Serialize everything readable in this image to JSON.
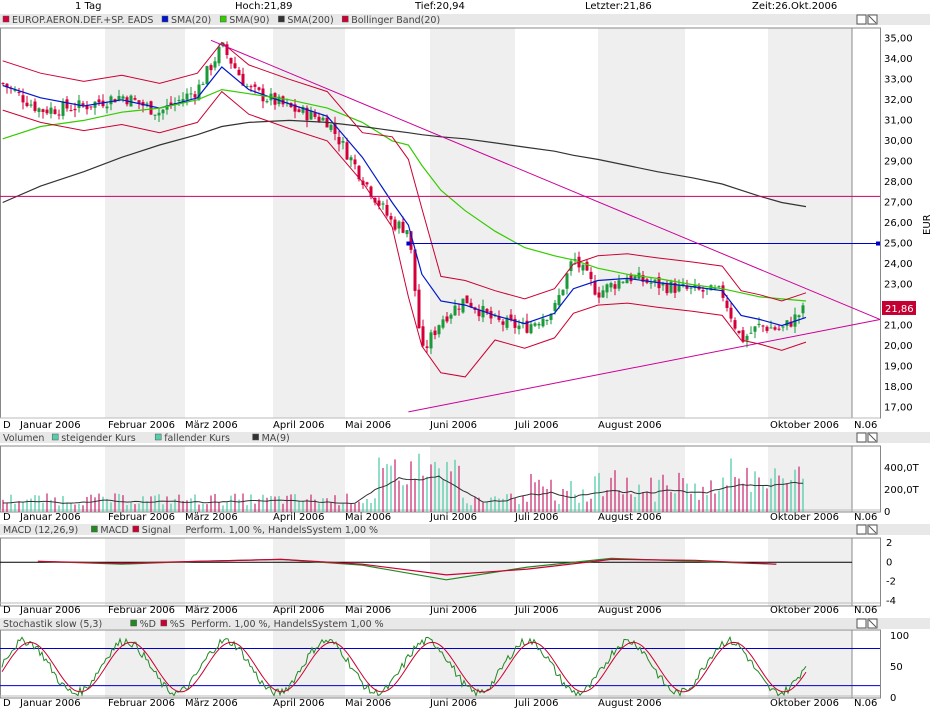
{
  "header": {
    "interval": "1 Tag",
    "high": "Hoch:21,89",
    "low": "Tief:20,94",
    "last": "Letzter:21,86",
    "time": "Zeit:26.Okt.2006"
  },
  "colors": {
    "price_up": "#1a9a3a",
    "price_down": "#d3003a",
    "sma20": "#0018cc",
    "sma90": "#33cc00",
    "sma200": "#333333",
    "bollinger": "#cc0033",
    "trendline": "#cc0099",
    "horizontal": "#cc0066",
    "blue_level": "#0000cc",
    "volume_up": "#55ccaa",
    "volume_down": "#cc3377",
    "volume_ma": "#333333",
    "macd": "#228822",
    "signal": "#cc0033",
    "stoch_k": "#228822",
    "stoch_d": "#cc0033",
    "band": "#efefef",
    "last_box": "#c40033"
  },
  "months": [
    "Januar 2006",
    "Februar 2006",
    "März 2006",
    "April 2006",
    "Mai 2006",
    "Juni 2006",
    "Juli 2006",
    "August 2006",
    "Oktober 2006",
    "N.06"
  ],
  "corner_label": "D",
  "last_price_label": "21,86",
  "y_unit": "EUR",
  "panels": {
    "price": {
      "legend": [
        "EUROP.AERON.DEF.+SP. EADS",
        "SMA(20)",
        "SMA(90)",
        "SMA(200)",
        "Bollinger Band(20)"
      ]
    },
    "volume": {
      "legend": [
        "Volumen",
        "steigender Kurs",
        "fallender Kurs",
        "MA(9)"
      ]
    },
    "macd": {
      "legend": [
        "MACD (12,26,9)",
        "MACD",
        "Signal",
        "Perform. 1,00 %, HandelsSystem 1,00 %"
      ]
    },
    "stoch": {
      "legend": [
        "Stochastik slow (5,3)",
        "%D",
        "%S",
        "Perform. 1,00 %, HandelsSystem 1,00 %"
      ]
    }
  },
  "chart_data": [
    {
      "type": "candlestick",
      "title": "EUROP.AERON.DEF.+SP. EADS",
      "ylabel": "EUR",
      "ylim": [
        16.5,
        35.5
      ],
      "yticks": [
        "35,00",
        "34,00",
        "33,00",
        "32,00",
        "31,00",
        "30,00",
        "29,00",
        "28,00",
        "27,00",
        "26,00",
        "25,00",
        "24,00",
        "23,00",
        "22,00",
        "21,00",
        "20,00",
        "19,00",
        "18,00",
        "17,00"
      ],
      "x": [
        "2006-01-02",
        "2006-01-16",
        "2006-02-01",
        "2006-02-15",
        "2006-03-01",
        "2006-03-15",
        "2006-03-24",
        "2006-04-03",
        "2006-04-18",
        "2006-05-02",
        "2006-05-15",
        "2006-05-26",
        "2006-06-01",
        "2006-06-06",
        "2006-06-13",
        "2006-06-22",
        "2006-07-03",
        "2006-07-14",
        "2006-07-25",
        "2006-08-01",
        "2006-08-10",
        "2006-08-21",
        "2006-09-01",
        "2006-09-14",
        "2006-09-25",
        "2006-10-02",
        "2006-10-09",
        "2006-10-17",
        "2006-10-26"
      ],
      "close": [
        32.8,
        31.5,
        31.7,
        32.2,
        31.4,
        32.5,
        34.6,
        32.5,
        31.6,
        31.0,
        28.2,
        26.0,
        25.7,
        19.6,
        21.3,
        22.3,
        21.2,
        20.9,
        21.8,
        24.3,
        22.6,
        23.4,
        23.0,
        22.7,
        22.6,
        20.3,
        21.0,
        20.8,
        21.86
      ],
      "series": [
        {
          "name": "SMA(20)",
          "values": [
            32.7,
            32.1,
            31.7,
            32.0,
            31.6,
            32.1,
            33.6,
            32.5,
            31.8,
            31.2,
            29.2,
            27.0,
            25.9,
            23.5,
            22.2,
            22.0,
            21.5,
            21.1,
            21.6,
            22.8,
            23.2,
            23.3,
            23.1,
            22.9,
            22.7,
            21.5,
            21.3,
            21.0,
            21.4
          ]
        },
        {
          "name": "SMA(90)",
          "values": [
            30.1,
            30.7,
            31.0,
            31.4,
            31.6,
            32.0,
            32.5,
            32.3,
            32.0,
            31.6,
            30.9,
            30.0,
            29.8,
            28.8,
            27.6,
            26.6,
            25.6,
            24.8,
            24.4,
            24.2,
            23.8,
            23.5,
            23.3,
            23.0,
            22.8,
            22.6,
            22.4,
            22.3,
            22.2
          ]
        },
        {
          "name": "SMA(200)",
          "values": [
            27.0,
            27.8,
            28.5,
            29.2,
            29.8,
            30.3,
            30.7,
            30.9,
            31.0,
            30.9,
            30.7,
            30.5,
            30.4,
            30.3,
            30.2,
            30.1,
            29.9,
            29.7,
            29.5,
            29.3,
            29.1,
            28.8,
            28.5,
            28.2,
            27.9,
            27.6,
            27.3,
            27.0,
            26.8
          ]
        }
      ]
    },
    {
      "type": "bar",
      "title": "Volumen",
      "yticks": [
        "400,0T",
        "200,0T",
        "0"
      ],
      "ylim": [
        0,
        600
      ],
      "note": "daily volume in thousands; MA(9) line"
    },
    {
      "type": "line",
      "title": "MACD (12,26,9)",
      "yticks": [
        "2",
        "0",
        "-2",
        "-4"
      ],
      "ylim": [
        -4.5,
        2.5
      ],
      "x": [
        "2006-01",
        "2006-02",
        "2006-03",
        "2006-04",
        "2006-05",
        "2006-06",
        "2006-07",
        "2006-08",
        "2006-09",
        "2006-10"
      ],
      "series": [
        {
          "name": "MACD",
          "values": [
            0.1,
            -0.2,
            0.1,
            0.3,
            -0.3,
            -1.8,
            -0.5,
            0.4,
            0.1,
            -0.2
          ]
        },
        {
          "name": "Signal",
          "values": [
            0.1,
            -0.1,
            0.1,
            0.3,
            -0.2,
            -1.3,
            -0.7,
            0.3,
            0.2,
            -0.2
          ]
        }
      ]
    },
    {
      "type": "line",
      "title": "Stochastik slow (5,3)",
      "yticks": [
        "100",
        "50",
        "0"
      ],
      "ylim": [
        0,
        110
      ],
      "reference_lines": [
        80,
        20
      ]
    }
  ]
}
